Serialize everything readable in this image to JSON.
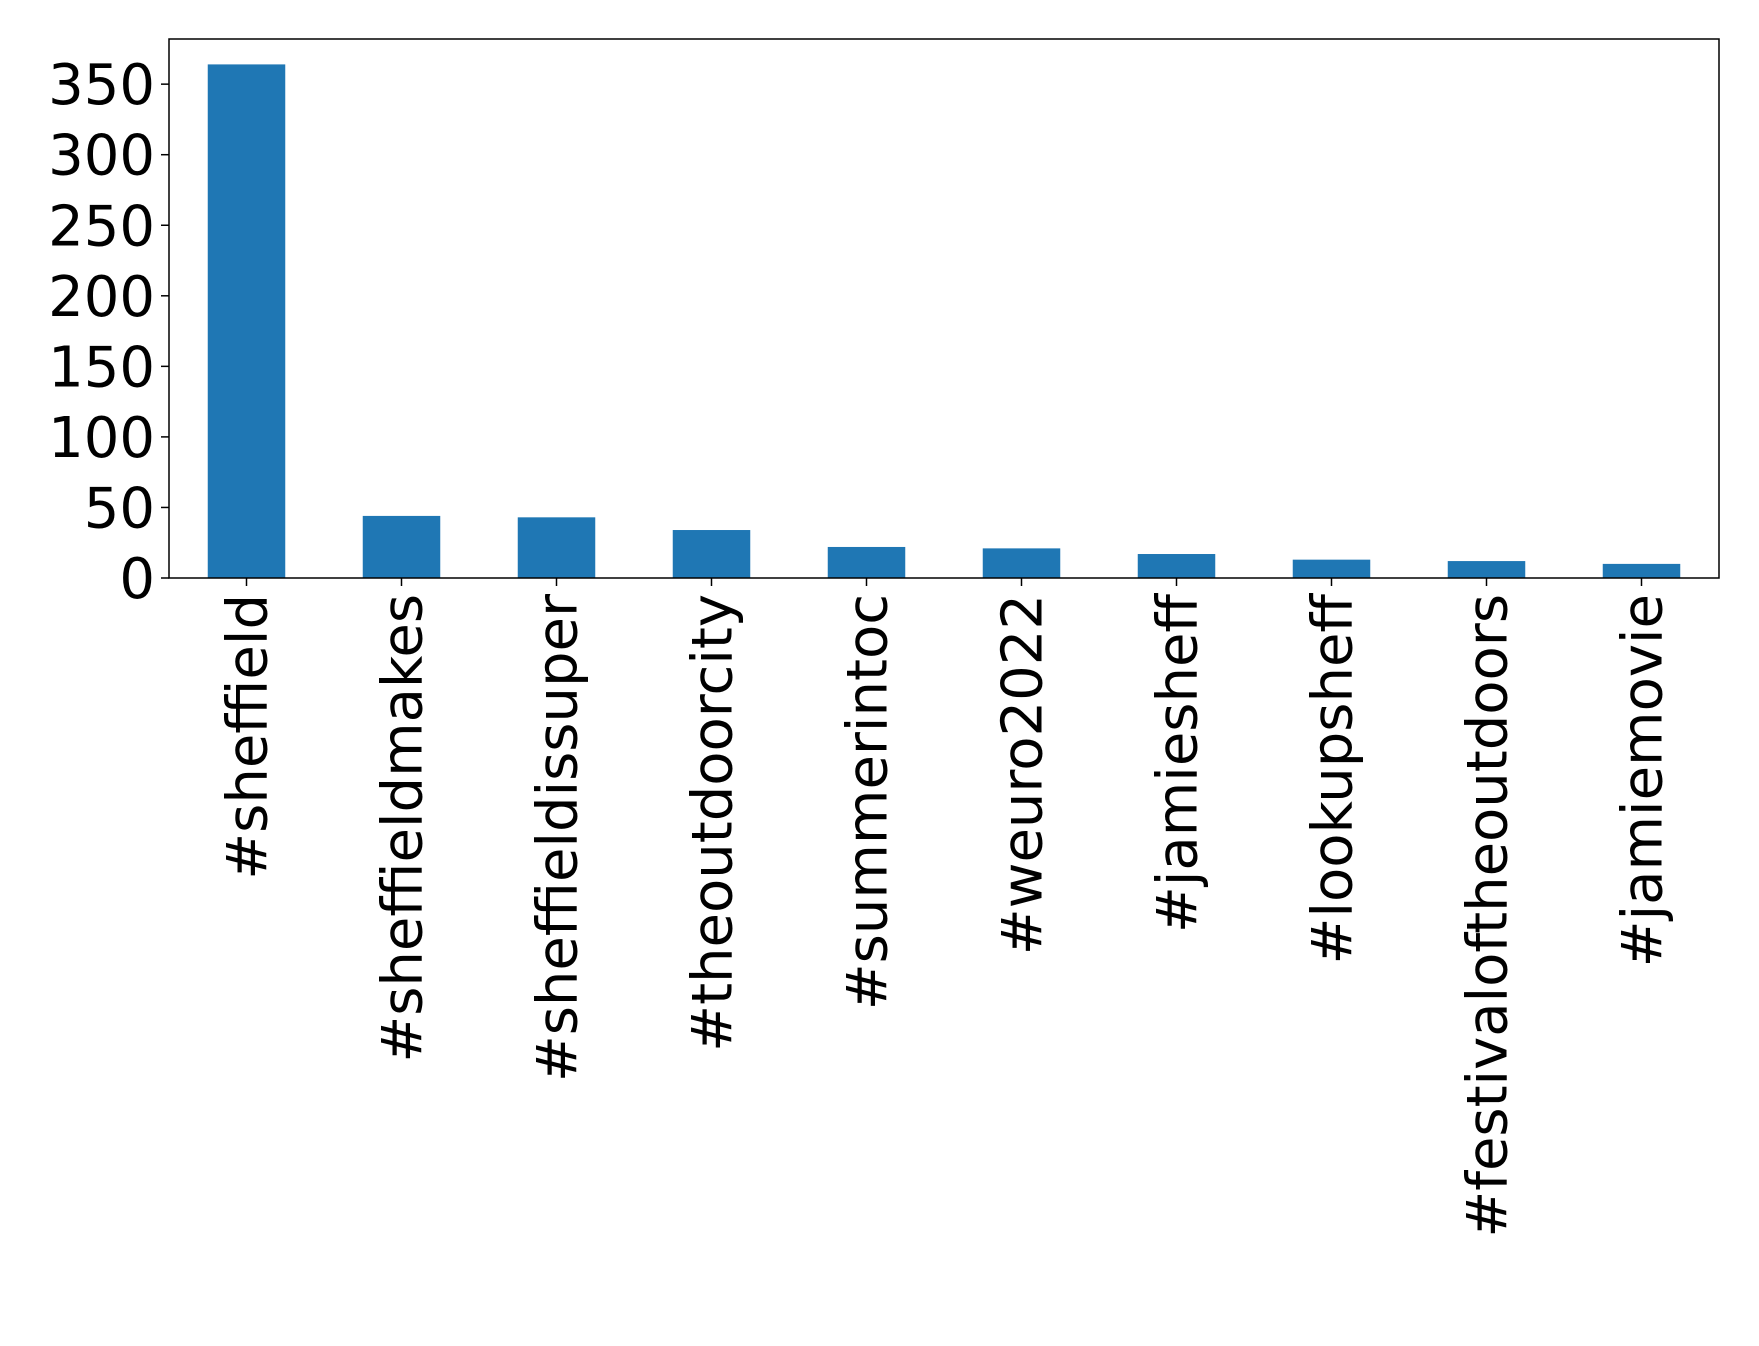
{
  "chart_data": {
    "type": "bar",
    "categories": [
      "#sheffield",
      "#sheffieldmakes",
      "#sheffieldissuper",
      "#theoutdoorcity",
      "#summerintoc",
      "#weuro2022",
      "#jamiesheff",
      "#lookupsheff",
      "#festivaloftheoutdoors",
      "#jamiemovie"
    ],
    "values": [
      364,
      44,
      43,
      34,
      22,
      21,
      17,
      13,
      12,
      10
    ],
    "color": "#1f77b4",
    "ylim": [
      0,
      382
    ],
    "yticks": [
      0,
      50,
      100,
      150,
      200,
      250,
      300,
      350
    ],
    "grid": false
  }
}
